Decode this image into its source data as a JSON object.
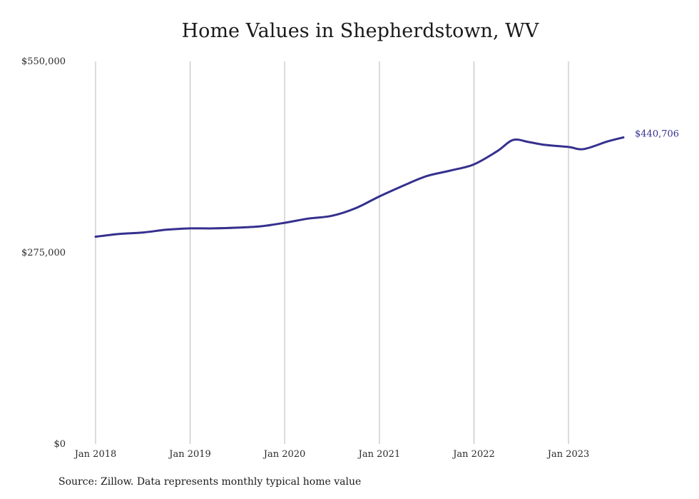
{
  "chart_data": {
    "type": "line",
    "title": "Home Values in Shepherdstown, WV",
    "xlabel": "",
    "ylabel": "",
    "ylim": [
      0,
      550000
    ],
    "yticks": [
      {
        "value": 0,
        "label": "$0"
      },
      {
        "value": 275000,
        "label": "$275,000"
      },
      {
        "value": 550000,
        "label": "$550,000"
      }
    ],
    "xticks": [
      {
        "date": "2018-01",
        "label": "Jan 2018"
      },
      {
        "date": "2019-01",
        "label": "Jan 2019"
      },
      {
        "date": "2020-01",
        "label": "Jan 2020"
      },
      {
        "date": "2021-01",
        "label": "Jan 2021"
      },
      {
        "date": "2022-01",
        "label": "Jan 2022"
      },
      {
        "date": "2023-01",
        "label": "Jan 2023"
      }
    ],
    "grid": "vertical",
    "color": "#35308e",
    "end_label": "$440,706",
    "series": [
      {
        "points": [
          {
            "x": "2018-01",
            "y": 298000
          },
          {
            "x": "2018-04",
            "y": 302000
          },
          {
            "x": "2018-07",
            "y": 304000
          },
          {
            "x": "2018-10",
            "y": 308000
          },
          {
            "x": "2019-01",
            "y": 310000
          },
          {
            "x": "2019-04",
            "y": 310000
          },
          {
            "x": "2019-07",
            "y": 311000
          },
          {
            "x": "2019-10",
            "y": 313000
          },
          {
            "x": "2020-01",
            "y": 318000
          },
          {
            "x": "2020-04",
            "y": 324000
          },
          {
            "x": "2020-07",
            "y": 328000
          },
          {
            "x": "2020-10",
            "y": 339000
          },
          {
            "x": "2021-01",
            "y": 356000
          },
          {
            "x": "2021-04",
            "y": 371000
          },
          {
            "x": "2021-07",
            "y": 385000
          },
          {
            "x": "2021-10",
            "y": 393000
          },
          {
            "x": "2022-01",
            "y": 402000
          },
          {
            "x": "2022-04",
            "y": 421000
          },
          {
            "x": "2022-06",
            "y": 437000
          },
          {
            "x": "2022-08",
            "y": 434000
          },
          {
            "x": "2022-10",
            "y": 430000
          },
          {
            "x": "2023-01",
            "y": 427000
          },
          {
            "x": "2023-03",
            "y": 424000
          },
          {
            "x": "2023-06",
            "y": 435000
          },
          {
            "x": "2023-08",
            "y": 440706
          }
        ]
      }
    ]
  },
  "footer": {
    "source": "Source: Zillow. Data represents monthly typical home value"
  }
}
